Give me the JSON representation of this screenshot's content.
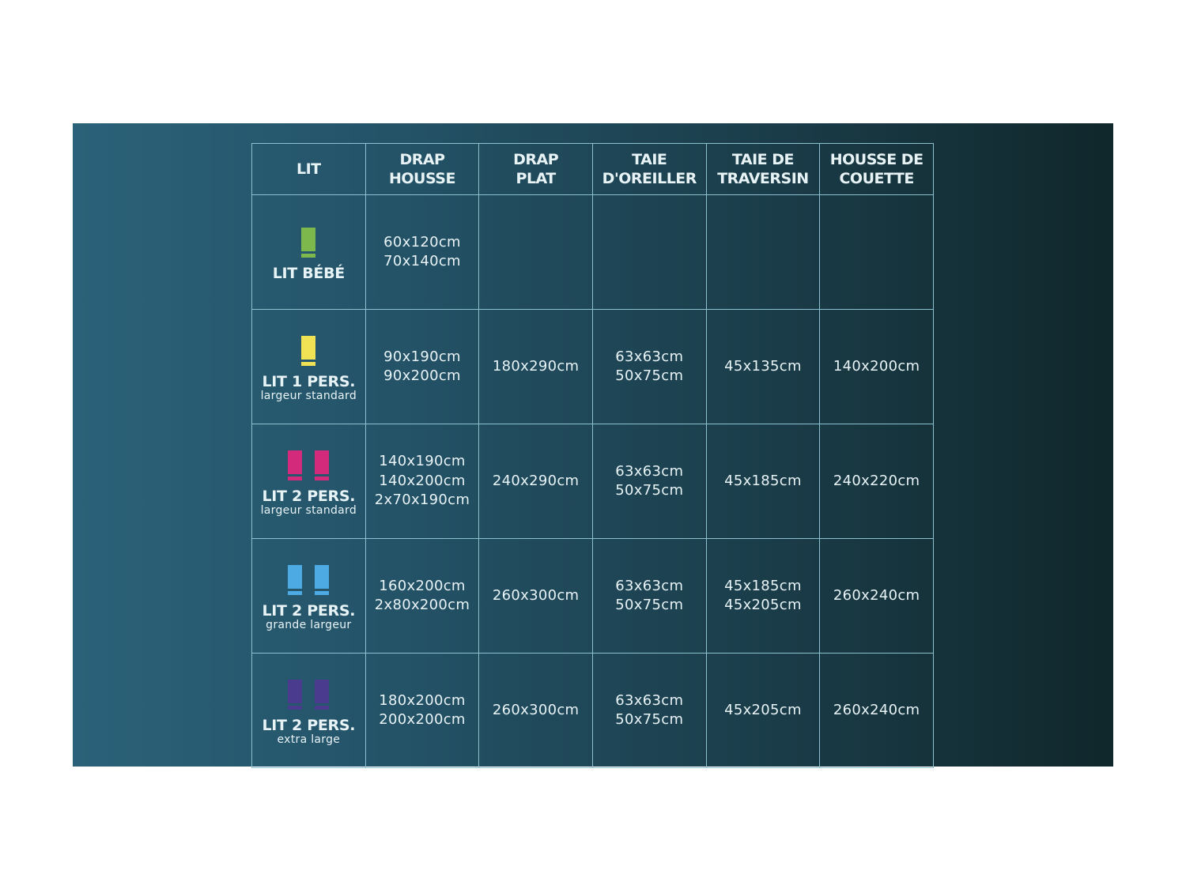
{
  "headers": [
    {
      "lines": [
        "LIT"
      ]
    },
    {
      "lines": [
        "DRAP",
        "HOUSSE"
      ]
    },
    {
      "lines": [
        "DRAP",
        "PLAT"
      ]
    },
    {
      "lines": [
        "TAIE",
        "D'OREILLER"
      ]
    },
    {
      "lines": [
        "TAIE DE",
        "TRAVERSIN"
      ]
    },
    {
      "lines": [
        "HOUSSE DE",
        "COUETTE"
      ]
    }
  ],
  "rows": [
    {
      "name": "LIT BÉBÉ",
      "sub": "",
      "icon": "single-bed-icon",
      "icon_count": 1,
      "color": "#7cb84c",
      "cells": [
        [
          "60x120cm",
          "70x140cm"
        ],
        [],
        [],
        [],
        []
      ]
    },
    {
      "name": "LIT 1 PERS.",
      "sub": "largeur standard",
      "icon": "single-bed-icon",
      "icon_count": 1,
      "color": "#f0e254",
      "cells": [
        [
          "90x190cm",
          "90x200cm"
        ],
        [
          "180x290cm"
        ],
        [
          "63x63cm",
          "50x75cm"
        ],
        [
          "45x135cm"
        ],
        [
          "140x200cm"
        ]
      ]
    },
    {
      "name": "LIT 2 PERS.",
      "sub": "largeur standard",
      "icon": "double-bed-icon",
      "icon_count": 2,
      "color": "#d42a7c",
      "cells": [
        [
          "140x190cm",
          "140x200cm",
          "2x70x190cm"
        ],
        [
          "240x290cm"
        ],
        [
          "63x63cm",
          "50x75cm"
        ],
        [
          "45x185cm"
        ],
        [
          "240x220cm"
        ]
      ]
    },
    {
      "name": "LIT 2 PERS.",
      "sub": "grande largeur",
      "icon": "double-bed-icon",
      "icon_count": 2,
      "color": "#4eaae2",
      "cells": [
        [
          "160x200cm",
          "2x80x200cm"
        ],
        [
          "260x300cm"
        ],
        [
          "63x63cm",
          "50x75cm"
        ],
        [
          "45x185cm",
          "45x205cm"
        ],
        [
          "260x240cm"
        ]
      ]
    },
    {
      "name": "LIT 2 PERS.",
      "sub": "extra large",
      "icon": "double-bed-icon",
      "icon_count": 2,
      "color": "#4b3b8e",
      "cells": [
        [
          "180x200cm",
          "200x200cm"
        ],
        [
          "260x300cm"
        ],
        [
          "63x63cm",
          "50x75cm"
        ],
        [
          "45x205cm"
        ],
        [
          "260x240cm"
        ]
      ]
    }
  ]
}
